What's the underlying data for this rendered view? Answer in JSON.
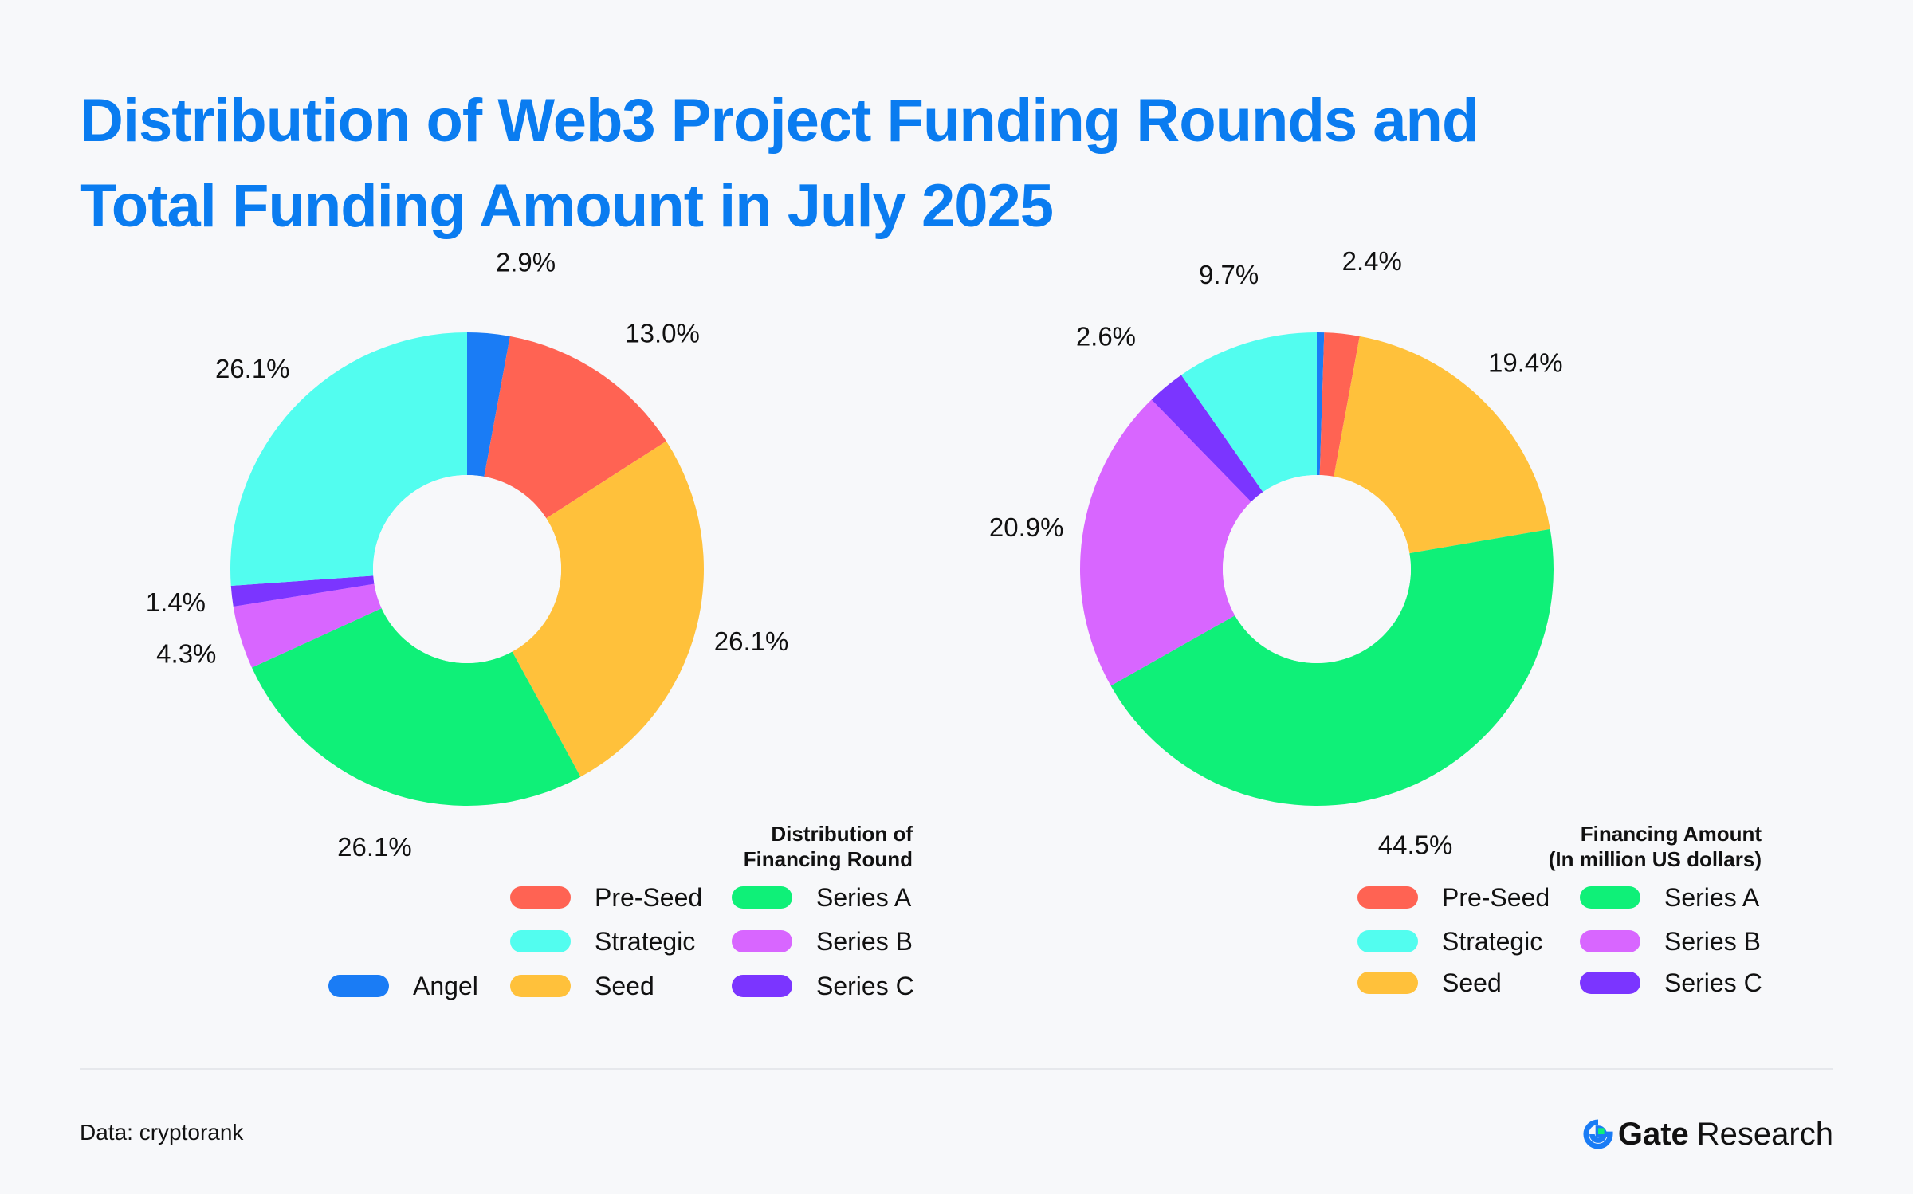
{
  "title_line1": "Distribution of Web3 Project Funding Rounds and",
  "title_line2": "Total Funding Amount in July 2025",
  "colors": {
    "Angel": "#1a7cf5",
    "Pre-Seed": "#ff6353",
    "Seed": "#ffc13b",
    "Series A": "#0ff078",
    "Series B": "#d866ff",
    "Series C": "#7b35ff",
    "Strategic": "#52fdef"
  },
  "chart_data": [
    {
      "type": "pie",
      "variant": "donut",
      "legend_title_line1": "Distribution of",
      "legend_title_line2": "Financing Round",
      "slices": [
        {
          "name": "Angel",
          "value": 2.9,
          "label": "2.9%"
        },
        {
          "name": "Pre-Seed",
          "value": 13.0,
          "label": "13.0%"
        },
        {
          "name": "Seed",
          "value": 26.1,
          "label": "26.1%"
        },
        {
          "name": "Series A",
          "value": 26.1,
          "label": "26.1%"
        },
        {
          "name": "Series B",
          "value": 4.3,
          "label": "4.3%"
        },
        {
          "name": "Series C",
          "value": 1.4,
          "label": "1.4%"
        },
        {
          "name": "Strategic",
          "value": 26.1,
          "label": "26.1%"
        }
      ],
      "legend": [
        "Pre-Seed",
        "Series A",
        "Strategic",
        "Series B",
        "Angel",
        "Seed",
        "Series C"
      ]
    },
    {
      "type": "pie",
      "variant": "donut",
      "legend_title_line1": "Financing Amount",
      "legend_title_line2": "(In million US dollars)",
      "slices": [
        {
          "name": "Angel",
          "value": 0.5,
          "label": ""
        },
        {
          "name": "Pre-Seed",
          "value": 2.4,
          "label": "2.4%"
        },
        {
          "name": "Seed",
          "value": 19.4,
          "label": "19.4%"
        },
        {
          "name": "Series A",
          "value": 44.5,
          "label": "44.5%"
        },
        {
          "name": "Series B",
          "value": 20.9,
          "label": "20.9%"
        },
        {
          "name": "Series C",
          "value": 2.6,
          "label": "2.6%"
        },
        {
          "name": "Strategic",
          "value": 9.7,
          "label": "9.7%"
        }
      ],
      "legend": [
        "Pre-Seed",
        "Series A",
        "Strategic",
        "Series B",
        "Seed",
        "Series C"
      ]
    }
  ],
  "footer": {
    "source": "Data: cryptorank",
    "brand_bold": "Gate",
    "brand_light": "Research"
  }
}
